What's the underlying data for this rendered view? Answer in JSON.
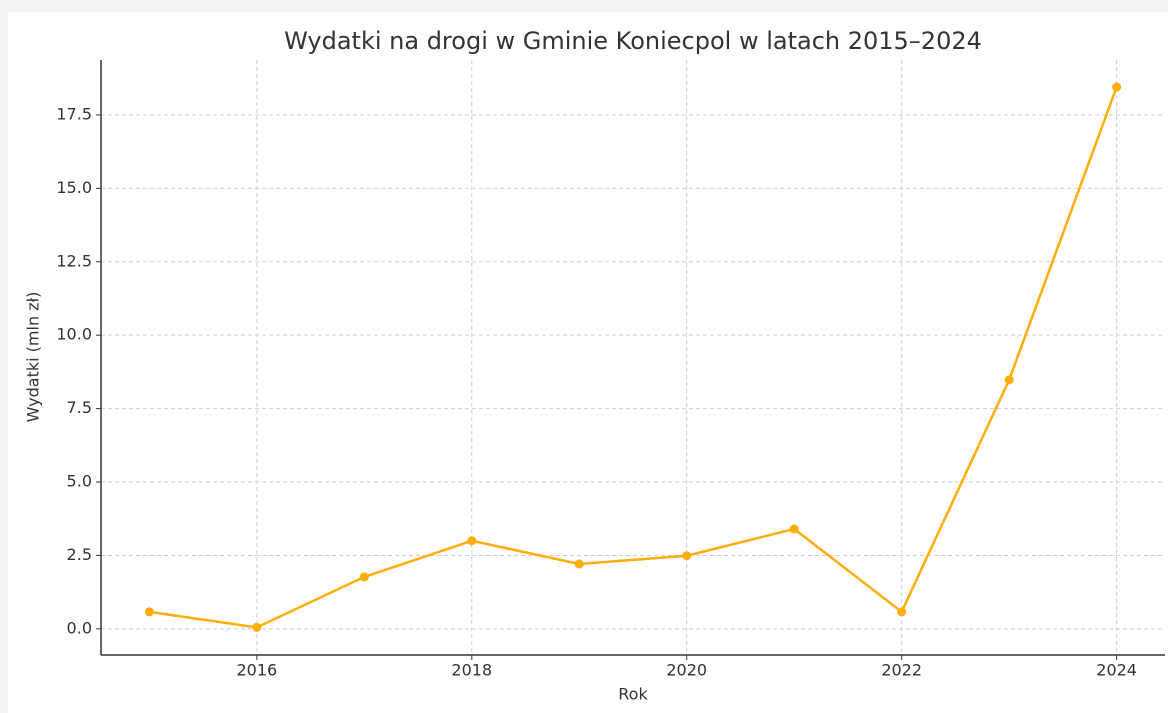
{
  "chart_data": {
    "type": "line",
    "title": "Wydatki na drogi w Gminie Koniecpol w latach 2015–2024",
    "xlabel": "Rok",
    "ylabel": "Wydatki (mln zł)",
    "x": [
      2015,
      2016,
      2017,
      2018,
      2019,
      2020,
      2021,
      2022,
      2023,
      2024
    ],
    "series": [
      {
        "name": "Wydatki",
        "color": "#ffad0a",
        "values": [
          0.58,
          0.05,
          1.77,
          3.0,
          2.21,
          2.49,
          3.4,
          0.58,
          8.48,
          18.45
        ]
      }
    ],
    "xlim": [
      2014.55,
      2024.45
    ],
    "xticks": [
      2016,
      2018,
      2020,
      2022,
      2024
    ],
    "ylim": [
      -0.89,
      19.37
    ],
    "yticks": [
      {
        "value": 0,
        "label": "0.0"
      },
      2.5,
      {
        "value": 5,
        "label": "5.0"
      },
      7.5,
      {
        "value": 10,
        "label": "10.0"
      },
      12.5,
      {
        "value": 15,
        "label": "15.0"
      },
      17.5
    ],
    "grid": true
  }
}
